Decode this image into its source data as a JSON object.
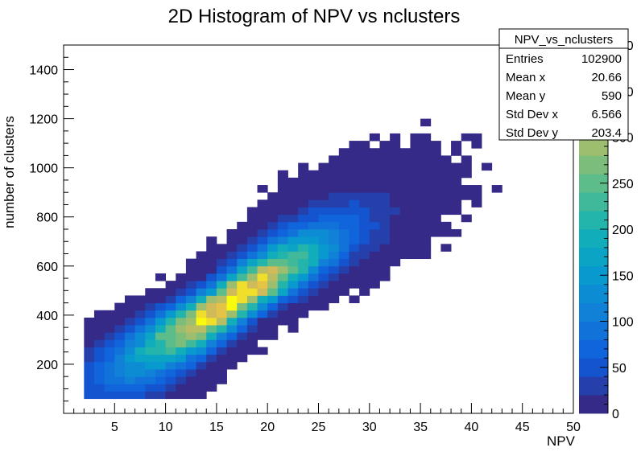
{
  "chart_data": {
    "type": "heatmap",
    "title": "2D Histogram of NPV vs nclusters",
    "xlabel": "NPV",
    "ylabel": "number of clusters",
    "xlim": [
      0,
      50
    ],
    "ylim": [
      0,
      1500
    ],
    "x_ticks": [
      "5",
      "10",
      "15",
      "20",
      "25",
      "30",
      "35",
      "40",
      "45",
      "50"
    ],
    "y_ticks": [
      "200",
      "400",
      "600",
      "800",
      "1000",
      "1200",
      "1400"
    ],
    "colorbar_ticks": [
      "0",
      "50",
      "100",
      "150",
      "200",
      "250",
      "300",
      "350",
      "400"
    ],
    "colorbar_max": 400,
    "bins": {
      "x": 50,
      "y": 50
    },
    "palette": "kBird (blue to yellow)",
    "distribution": {
      "peak_count": 390,
      "peak_npv": 17,
      "peak_nclusters": 450,
      "slope_nclusters_per_npv": 28,
      "intercept": -2,
      "sigma_npv_along": 6.2,
      "sigma_nclusters_perp": 70
    },
    "stats": {
      "title": "NPV_vs_nclusters",
      "rows": [
        {
          "label": "Entries",
          "value": "102900"
        },
        {
          "label": "Mean x",
          "value": "20.66"
        },
        {
          "label": "Mean y",
          "value": "590"
        },
        {
          "label": "Std Dev x",
          "value": "6.566"
        },
        {
          "label": "Std Dev y",
          "value": "203.4"
        }
      ]
    }
  }
}
